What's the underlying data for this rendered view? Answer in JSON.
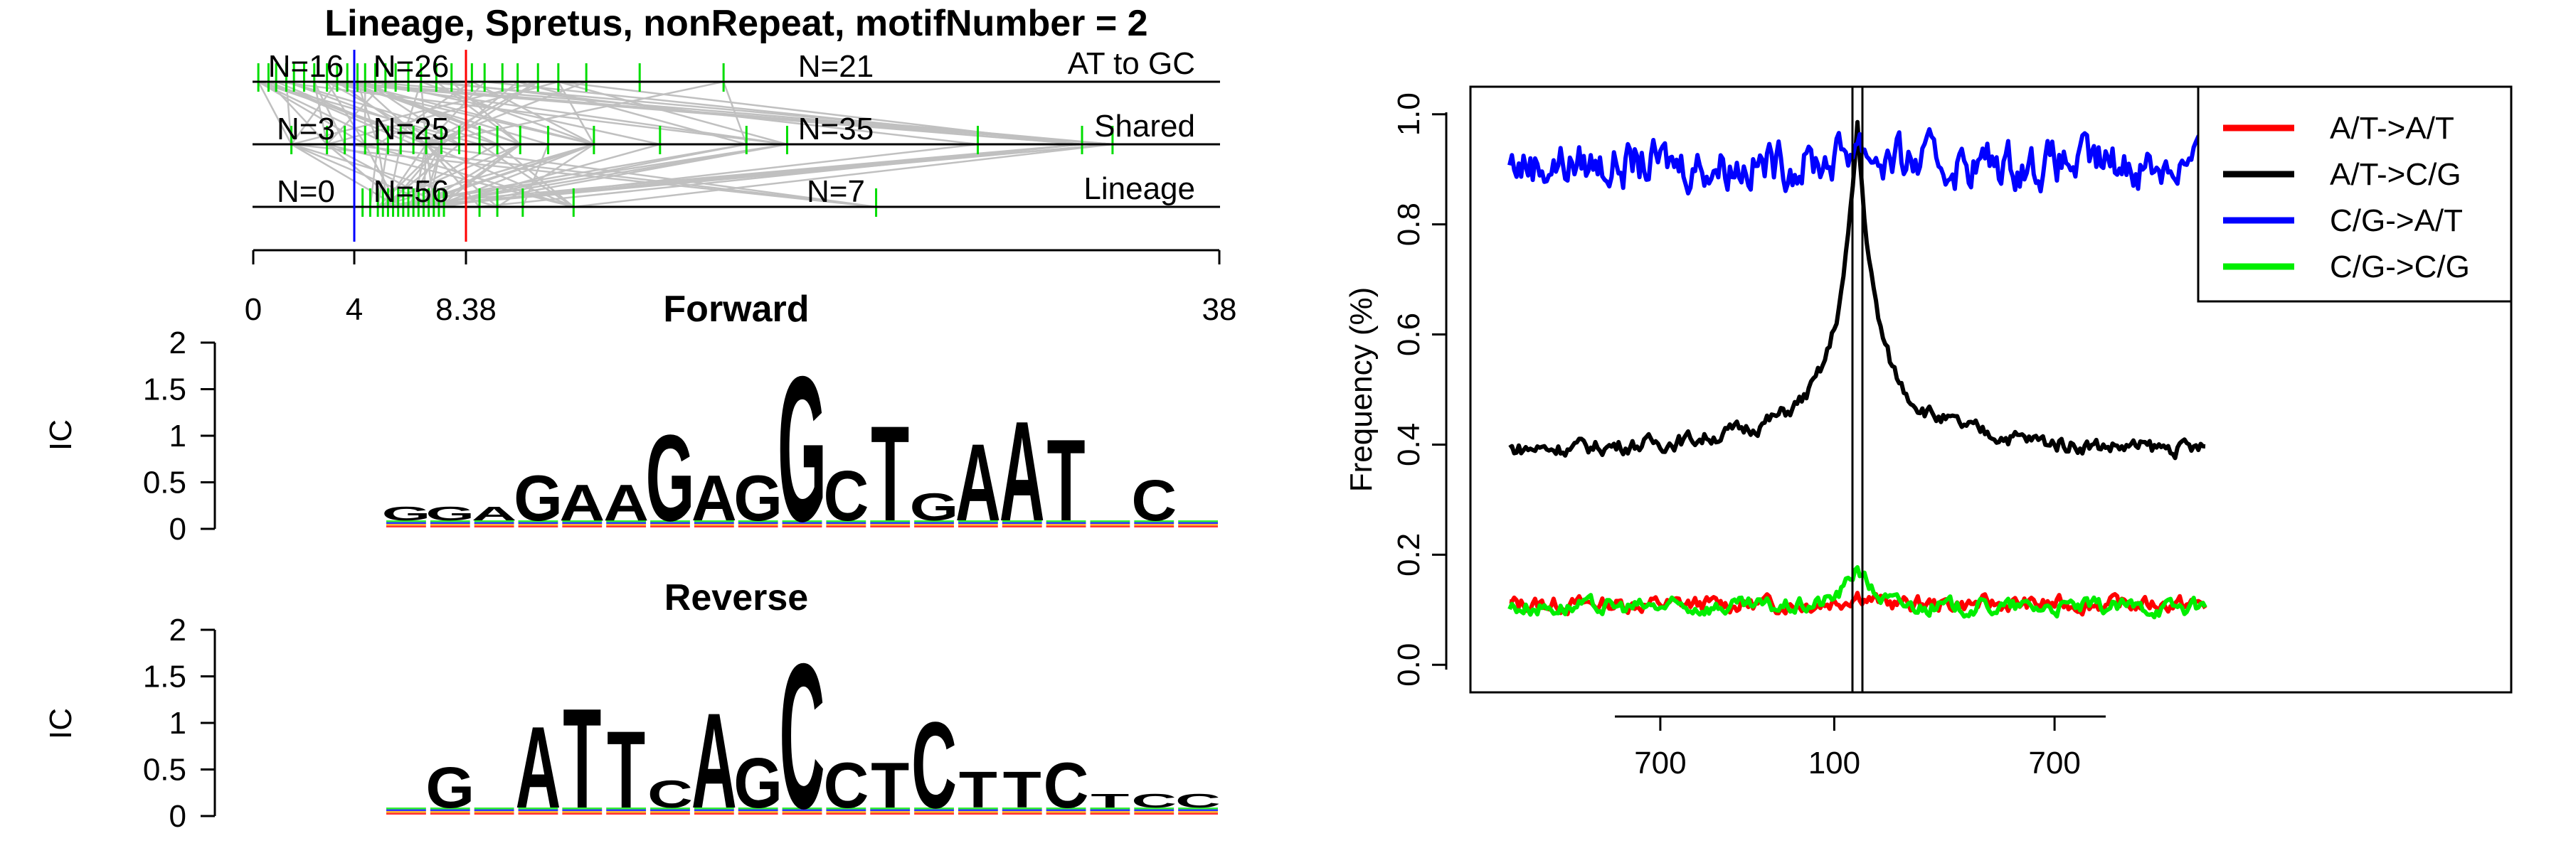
{
  "chart_data": [
    {
      "type": "diagram",
      "title": "Lineage, Spretus, nonRepeat, motifNumber = 2",
      "rows": [
        {
          "label": "AT to GC",
          "counts": [
            "N=16",
            "N=26",
            "N=21"
          ]
        },
        {
          "label": "Shared",
          "counts": [
            "N=3",
            "N=25",
            "N=35"
          ]
        },
        {
          "label": "Lineage",
          "counts": [
            "N=0",
            "N=56",
            "N=7"
          ]
        }
      ],
      "axis": {
        "ticks": [
          "0",
          "4",
          "8.38",
          "38"
        ],
        "range": [
          0,
          38
        ]
      },
      "colors": {
        "mark": "#00dd00",
        "link": "#c0c0c0",
        "marker_blue": "#0000ff",
        "marker_red": "#ff0000"
      }
    },
    {
      "type": "sequence-logo",
      "title": "Forward",
      "ylabel": "IC",
      "yticks": [
        "0",
        "0.5",
        "1",
        "1.5",
        "2"
      ],
      "ylim": [
        0,
        2
      ],
      "letters": [
        "G",
        "G",
        "A",
        "G",
        "A",
        "A",
        "G",
        "A",
        "G",
        "G",
        "C",
        "T",
        "G",
        "A",
        "A",
        "T",
        "",
        "C",
        ""
      ],
      "heights": [
        0.15,
        0.15,
        0.15,
        0.5,
        0.4,
        0.4,
        0.95,
        0.5,
        0.5,
        1.6,
        0.55,
        1.05,
        0.3,
        0.85,
        1.1,
        0.9,
        0.0,
        0.45,
        0.05
      ]
    },
    {
      "type": "sequence-logo",
      "title": "Reverse",
      "ylabel": "IC",
      "yticks": [
        "0",
        "0.5",
        "1",
        "1.5",
        "2"
      ],
      "ylim": [
        0,
        2
      ],
      "letters": [
        "",
        "G",
        "",
        "A",
        "T",
        "T",
        "C",
        "A",
        "G",
        "C",
        "C",
        "T",
        "C",
        "T",
        "T",
        "C",
        "T",
        "C",
        "C"
      ],
      "heights": [
        0.05,
        0.45,
        0.05,
        0.9,
        1.1,
        0.85,
        0.3,
        1.05,
        0.55,
        1.6,
        0.5,
        0.5,
        0.95,
        0.4,
        0.4,
        0.5,
        0.15,
        0.15,
        0.15
      ]
    },
    {
      "type": "line",
      "ylabel": "Frequency (%)",
      "yticks": [
        "0.0",
        "0.2",
        "0.4",
        "0.6",
        "0.8",
        "1.0"
      ],
      "ylim": [
        -0.05,
        1.05
      ],
      "xlim": [
        -300,
        300
      ],
      "xticks": [
        {
          "pos": -170,
          "label": "700"
        },
        {
          "pos": -20,
          "label": "100"
        },
        {
          "pos": 170,
          "label": "700"
        }
      ],
      "vlines": [
        0,
        3
      ],
      "legend": "top-right",
      "series": [
        {
          "name": "A/T->A/T",
          "color": "#ff0000",
          "base": 0.11,
          "peak": 0.02,
          "noise": 0.012
        },
        {
          "name": "A/T->C/G",
          "color": "#000000",
          "base": 0.39,
          "peak": 0.44,
          "noise": 0.012
        },
        {
          "name": "C/G->A/T",
          "color": "#0000ff",
          "base": 0.91,
          "peak": 0.05,
          "noise": 0.035
        },
        {
          "name": "C/G->C/G",
          "color": "#00ee00",
          "base": 0.105,
          "peak": 0.08,
          "noise": 0.012
        }
      ]
    }
  ]
}
